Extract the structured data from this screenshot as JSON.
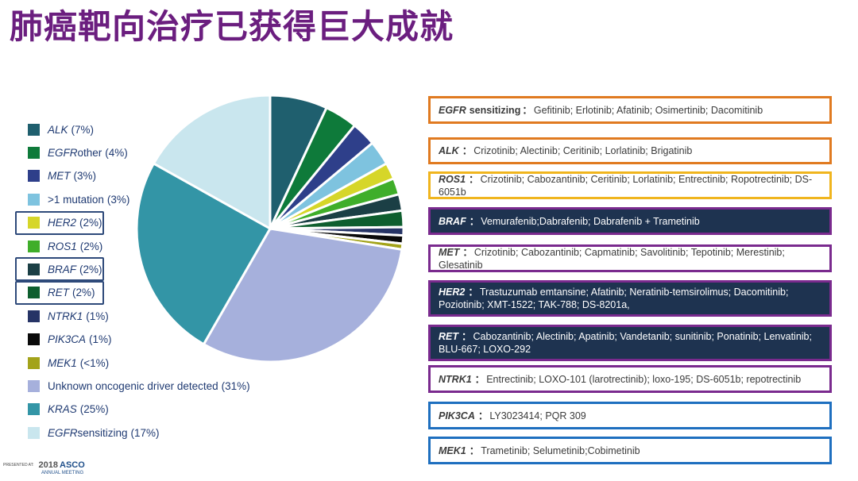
{
  "title": "肺癌靶向治疗已获得巨大成就",
  "chart_data": {
    "type": "pie",
    "slices": [
      {
        "gene": "ALK",
        "label": "ALK",
        "pct_text": "(7%)",
        "value": 7,
        "color": "#1f5f6e",
        "italic": true
      },
      {
        "gene": "EGFR other",
        "label": "EGFR",
        "suffix": " other",
        "pct_text": "(4%)",
        "value": 4,
        "color": "#0e7a3a",
        "italic": true
      },
      {
        "gene": "MET",
        "label": "MET",
        "pct_text": "(3%)",
        "value": 3,
        "color": "#2e3f8a",
        "italic": true
      },
      {
        "gene": ">1 mutation",
        "label": ">1 mutation",
        "pct_text": "(3%)",
        "value": 3,
        "color": "#7ec3df",
        "italic": false
      },
      {
        "gene": "HER2",
        "label": "HER2",
        "pct_text": "(2%)",
        "value": 2,
        "color": "#d6d629",
        "italic": true
      },
      {
        "gene": "ROS1",
        "label": "ROS1",
        "pct_text": "(2%)",
        "value": 2,
        "color": "#3fae2a",
        "italic": true
      },
      {
        "gene": "BRAF",
        "label": "BRAF",
        "pct_text": "(2%)",
        "value": 2,
        "color": "#1b3f45",
        "italic": true
      },
      {
        "gene": "RET",
        "label": "RET",
        "pct_text": "(2%)",
        "value": 2,
        "color": "#0e5e2e",
        "italic": true
      },
      {
        "gene": "NTRK1",
        "label": "NTRK1",
        "pct_text": "(1%)",
        "value": 1,
        "color": "#263466",
        "italic": true
      },
      {
        "gene": "PIK3CA",
        "label": "PIK3CA",
        "pct_text": "(1%)",
        "value": 1,
        "color": "#0a0a0a",
        "italic": true
      },
      {
        "gene": "MEK1",
        "label": "MEK1",
        "pct_text": "(<1%)",
        "value": 0.7,
        "color": "#a3a31a",
        "italic": true
      },
      {
        "gene": "Unknown oncogenic driver detected",
        "label": "Unknown oncogenic driver detected",
        "pct_text": "(31%)",
        "value": 31,
        "color": "#a6b0dc",
        "italic": false
      },
      {
        "gene": "KRAS",
        "label": "KRAS",
        "pct_text": "(25%)",
        "value": 25,
        "color": "#3395a6",
        "italic": true
      },
      {
        "gene": "EGFR sensitizing",
        "label": "EGFR",
        "suffix": " sensitizing",
        "pct_text": "(17%)",
        "value": 17,
        "color": "#c9e6ee",
        "italic": true
      }
    ],
    "highlighted": [
      "HER2",
      "BRAF",
      "RET"
    ]
  },
  "drug_boxes": [
    {
      "gene": "EGFR",
      "gene_suffix": " sensitizing",
      "sep": "：",
      "drugs": "Gefitinib; Erlotinib; Afatinib; Osimertinib; Dacomitinib",
      "border": "#e07a20",
      "fill": "#ffffff",
      "theme": "light"
    },
    {
      "gene": "ALK",
      "gene_suffix": "",
      "sep": "：",
      "drugs": "Crizotinib; Alectinib; Ceritinib; Lorlatinib; Brigatinib",
      "border": "#e07a20",
      "fill": "#ffffff",
      "theme": "light"
    },
    {
      "gene": "ROS1",
      "gene_suffix": "",
      "sep": "：",
      "drugs": "Crizotinib; Cabozantinib; Ceritinib; Lorlatinib; Entrectinib; Ropotrectinib; DS-6051b",
      "border": "#f0b51e",
      "fill": "#ffffff",
      "theme": "light"
    },
    {
      "gene": "BRAF",
      "gene_suffix": "",
      "sep": "：",
      "drugs": "Vemurafenib;Dabrafenib; Dabrafenib + Trametinib",
      "border": "#7a2a8e",
      "fill": "#1e3350",
      "theme": "dark"
    },
    {
      "gene": "MET",
      "gene_suffix": "",
      "sep": "：",
      "drugs": "Crizotinib; Cabozantinib; Capmatinib; Savolitinib; Tepotinib; Merestinib; Glesatinib",
      "border": "#7a2a8e",
      "fill": "#ffffff",
      "theme": "light"
    },
    {
      "gene": "HER2",
      "gene_suffix": "",
      "sep": "：",
      "drugs": "Trastuzumab emtansine; Afatinib; Neratinib-temsirolimus; Dacomitinib; Poziotinib; XMT-1522; TAK-788; DS-8201a,",
      "border": "#7a2a8e",
      "fill": "#1e3350",
      "theme": "dark"
    },
    {
      "gene": "RET",
      "gene_suffix": "",
      "sep": "：",
      "drugs": "Cabozantinib; Alectinib; Apatinib; Vandetanib; sunitinib; Ponatinib; Lenvatinib; BLU-667; LOXO-292",
      "border": "#7a2a8e",
      "fill": "#1e3350",
      "theme": "dark"
    },
    {
      "gene": "NTRK1",
      "gene_suffix": "",
      "sep": "：",
      "drugs": "Entrectinib; LOXO-101 (larotrectinib); loxo-195; DS-6051b; repotrectinib",
      "border": "#7a2a8e",
      "fill": "#ffffff",
      "theme": "light"
    },
    {
      "gene": "PIK3CA",
      "gene_suffix": "",
      "sep": "：",
      "drugs": "LY3023414; PQR 309",
      "border": "#1e6fbf",
      "fill": "#ffffff",
      "theme": "light"
    },
    {
      "gene": "MEK1",
      "gene_suffix": "",
      "sep": "：",
      "drugs": "Trametinib; Selumetinib;Cobimetinib",
      "border": "#1e6fbf",
      "fill": "#ffffff",
      "theme": "light"
    }
  ],
  "footer": {
    "presented_at": "PRESENTED AT:",
    "year": "2018",
    "org": "ASCO",
    "meeting": "ANNUAL MEETING"
  }
}
